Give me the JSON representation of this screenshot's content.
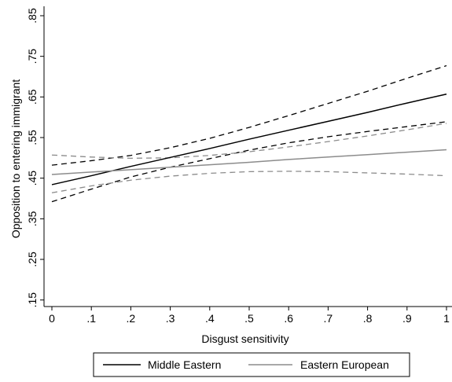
{
  "chart_data": {
    "type": "line",
    "title": "",
    "xlabel": "Disgust sensitivity",
    "ylabel": "Opposition to entering immigrant",
    "xlim": [
      0,
      1
    ],
    "ylim": [
      0.13,
      0.865
    ],
    "x_ticks": [
      0,
      0.1,
      0.2,
      0.3,
      0.4,
      0.5,
      0.6,
      0.7,
      0.8,
      0.9,
      1
    ],
    "x_tick_labels": [
      "0",
      ".1",
      ".2",
      ".3",
      ".4",
      ".5",
      ".6",
      ".7",
      ".8",
      ".9",
      "1"
    ],
    "y_ticks": [
      0.15,
      0.25,
      0.35,
      0.45,
      0.55,
      0.65,
      0.75,
      0.85
    ],
    "y_tick_labels": [
      ".15",
      ".25",
      ".35",
      ".45",
      ".55",
      ".65",
      ".75",
      ".85"
    ],
    "grid": false,
    "legend_position": "bottom",
    "legend": [
      "Middle Eastern",
      "Eastern European"
    ],
    "x": [
      0,
      0.1,
      0.2,
      0.3,
      0.4,
      0.5,
      0.6,
      0.7,
      0.8,
      0.9,
      1
    ],
    "series": [
      {
        "name": "Middle Eastern",
        "color": "#000000",
        "values": [
          0.434,
          0.456,
          0.479,
          0.501,
          0.523,
          0.546,
          0.568,
          0.59,
          0.612,
          0.635,
          0.657
        ],
        "ci_lower": [
          0.392,
          0.423,
          0.453,
          0.477,
          0.498,
          0.519,
          0.537,
          0.552,
          0.565,
          0.577,
          0.589
        ],
        "ci_upper": [
          0.482,
          0.493,
          0.506,
          0.525,
          0.548,
          0.575,
          0.604,
          0.634,
          0.664,
          0.696,
          0.727
        ]
      },
      {
        "name": "Eastern European",
        "color": "#8c8c8c",
        "values": [
          0.459,
          0.465,
          0.471,
          0.477,
          0.483,
          0.489,
          0.496,
          0.502,
          0.508,
          0.514,
          0.52
        ],
        "ci_lower": [
          0.414,
          0.431,
          0.445,
          0.455,
          0.462,
          0.466,
          0.467,
          0.466,
          0.463,
          0.46,
          0.456
        ],
        "ci_upper": [
          0.507,
          0.502,
          0.499,
          0.5,
          0.506,
          0.515,
          0.527,
          0.54,
          0.554,
          0.569,
          0.585
        ]
      }
    ]
  }
}
